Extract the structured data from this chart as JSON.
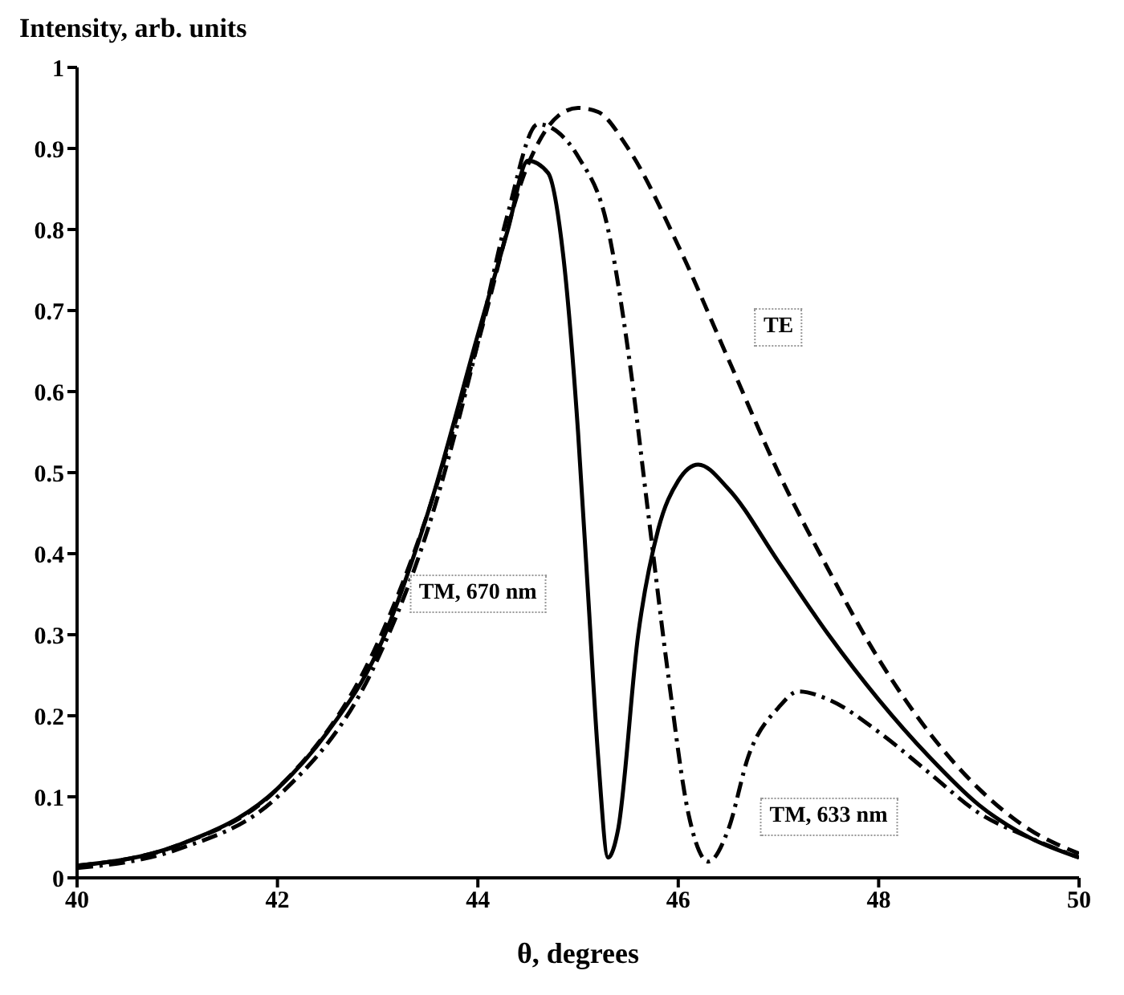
{
  "chart_data": {
    "type": "line",
    "ylabel": "Intensity, arb. units",
    "xlabel": "θ, degrees",
    "xlim": [
      40,
      50
    ],
    "xticks": [
      40,
      42,
      44,
      46,
      48,
      50
    ],
    "ylim": [
      0,
      1
    ],
    "yticks": [
      0,
      0.1,
      0.2,
      0.3,
      0.4,
      0.5,
      0.6,
      0.7,
      0.8,
      0.9,
      1
    ],
    "grid": false,
    "legend": false,
    "marker": "none",
    "series": [
      {
        "name": "TM, 670 nm",
        "color": "#000000",
        "line_style": "solid",
        "x": [
          40,
          41,
          42,
          42.5,
          43,
          43.5,
          44,
          44.3,
          44.5,
          44.7,
          44.85,
          45,
          45.1,
          45.2,
          45.3,
          45.4,
          45.6,
          45.8,
          46,
          46.2,
          46.5,
          47,
          47.5,
          48,
          48.5,
          49,
          49.5,
          50
        ],
        "values": [
          0.015,
          0.04,
          0.11,
          0.18,
          0.28,
          0.45,
          0.67,
          0.8,
          0.885,
          0.87,
          0.77,
          0.55,
          0.35,
          0.15,
          0.025,
          0.06,
          0.3,
          0.43,
          0.49,
          0.51,
          0.48,
          0.39,
          0.3,
          0.22,
          0.15,
          0.09,
          0.05,
          0.025
        ]
      },
      {
        "name": "TE",
        "color": "#000000",
        "line_style": "dashed",
        "x": [
          40,
          41,
          42,
          43,
          43.5,
          44,
          44.5,
          44.8,
          45,
          45.2,
          45.5,
          46,
          46.5,
          47,
          47.5,
          48,
          48.5,
          49,
          49.5,
          50
        ],
        "values": [
          0.015,
          0.04,
          0.11,
          0.29,
          0.45,
          0.66,
          0.88,
          0.94,
          0.95,
          0.945,
          0.9,
          0.78,
          0.64,
          0.5,
          0.38,
          0.27,
          0.18,
          0.11,
          0.06,
          0.03
        ]
      },
      {
        "name": "TM, 633 nm",
        "color": "#000000",
        "line_style": "dashdot",
        "x": [
          40,
          41,
          42,
          43,
          43.5,
          44,
          44.3,
          44.6,
          44.8,
          45,
          45.3,
          45.5,
          45.7,
          45.9,
          46.1,
          46.3,
          46.5,
          46.7,
          47,
          47.2,
          47.5,
          48,
          48.5,
          49,
          49.5,
          50
        ],
        "values": [
          0.012,
          0.035,
          0.1,
          0.27,
          0.43,
          0.66,
          0.82,
          0.93,
          0.92,
          0.89,
          0.8,
          0.65,
          0.45,
          0.25,
          0.08,
          0.02,
          0.06,
          0.15,
          0.21,
          0.23,
          0.22,
          0.18,
          0.13,
          0.08,
          0.05,
          0.025
        ]
      }
    ]
  }
}
